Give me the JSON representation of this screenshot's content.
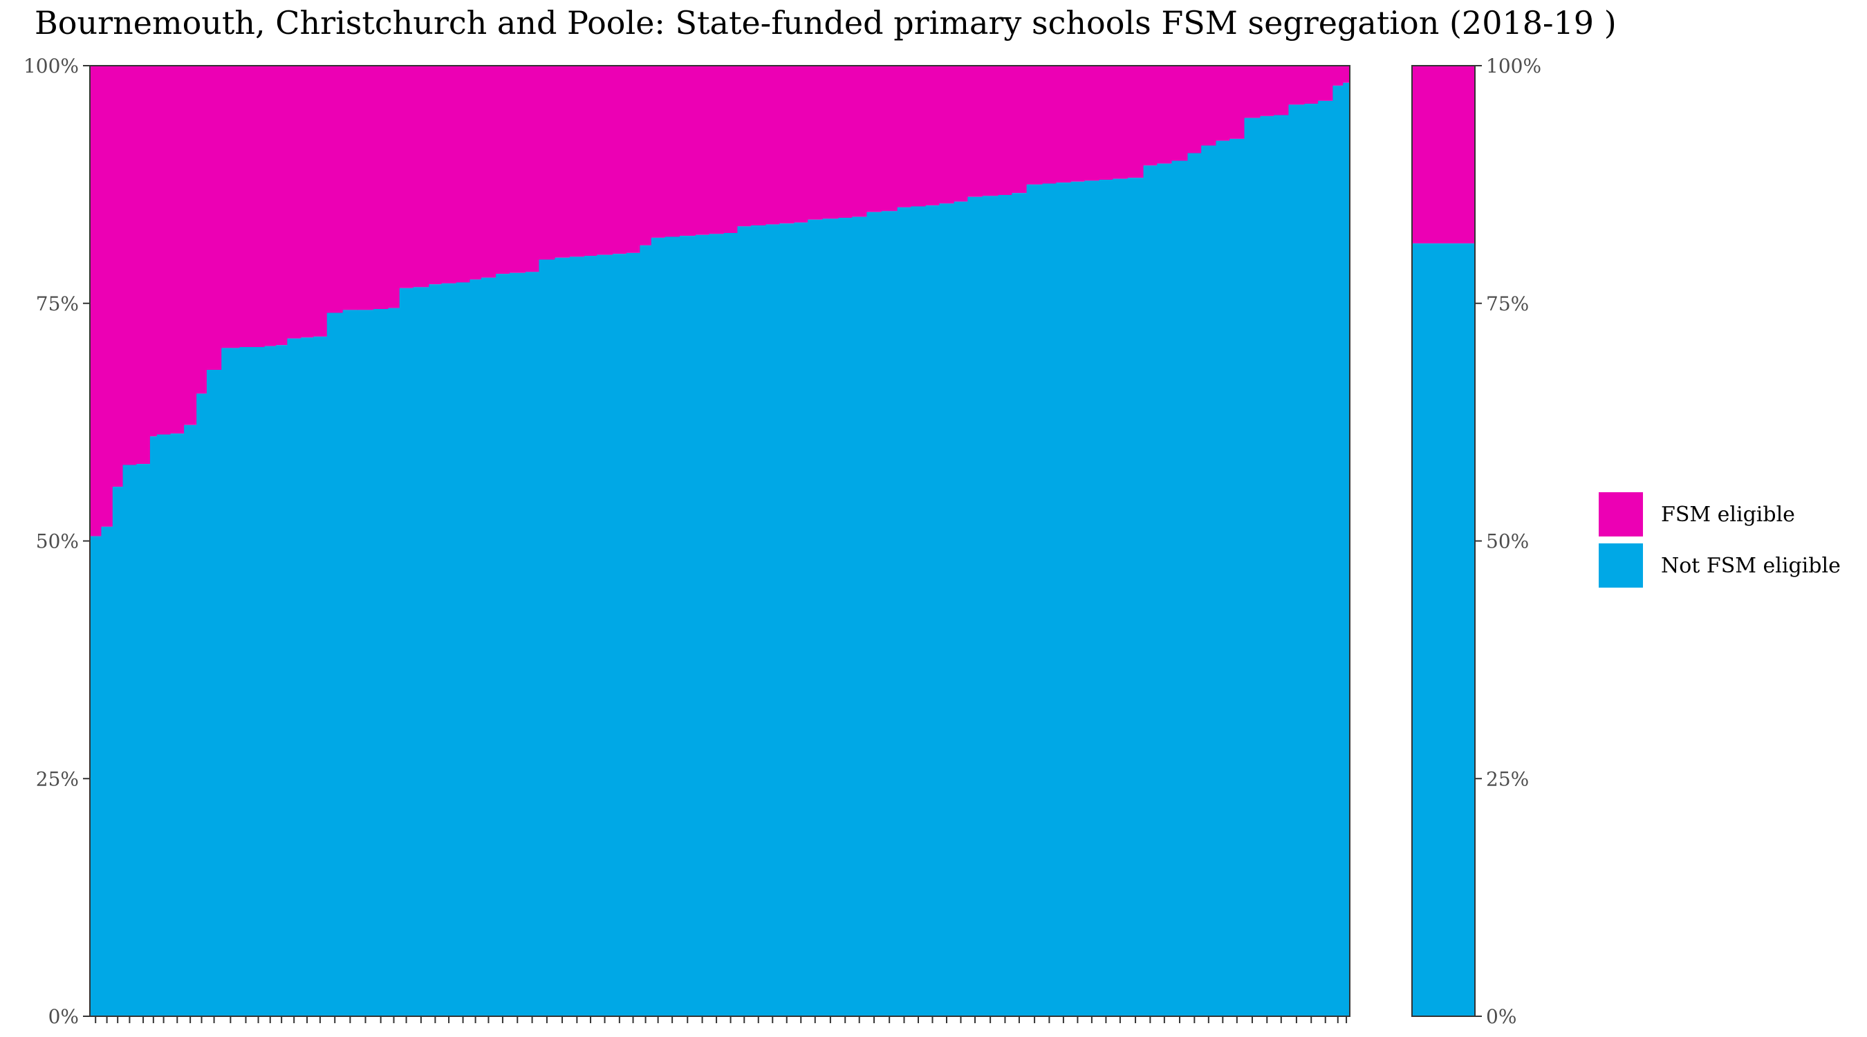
{
  "chart_data": {
    "type": "bar",
    "title": "Bournemouth, Christchurch and Poole: State-funded primary schools FSM segregation (2018-19 )",
    "xlabel": "",
    "ylabel": "",
    "ylim": [
      0,
      100
    ],
    "y_ticks": [
      "0%",
      "25%",
      "50%",
      "75%",
      "100%"
    ],
    "legend_position": "right",
    "colors": {
      "fsm": "#EC00B4",
      "not_fsm": "#00A8E6"
    },
    "series": [
      {
        "name": "FSM eligible",
        "color": "#EC00B4"
      },
      {
        "name": "Not FSM eligible",
        "color": "#00A8E6"
      }
    ],
    "schools": {
      "not_fsm_pct": [
        50.5,
        51.5,
        55.7,
        58.0,
        58.1,
        61.0,
        61.2,
        61.3,
        62.2,
        65.5,
        68.0,
        70.3,
        70.4,
        70.4,
        70.5,
        70.6,
        71.3,
        71.4,
        71.5,
        74.0,
        74.3,
        74.3,
        74.4,
        74.5,
        76.6,
        76.7,
        77.0,
        77.1,
        77.2,
        77.5,
        77.7,
        78.1,
        78.2,
        78.3,
        79.6,
        79.8,
        79.9,
        80.0,
        80.1,
        80.2,
        80.3,
        81.1,
        81.9,
        82.0,
        82.1,
        82.2,
        82.3,
        82.4,
        83.1,
        83.2,
        83.3,
        83.4,
        83.5,
        83.8,
        83.9,
        84.0,
        84.1,
        84.6,
        84.7,
        85.1,
        85.2,
        85.3,
        85.5,
        85.7,
        86.2,
        86.3,
        86.4,
        86.6,
        87.5,
        87.6,
        87.7,
        87.8,
        87.9,
        88.0,
        88.1,
        88.2,
        89.5,
        89.7,
        90.0,
        90.8,
        91.6,
        92.1,
        92.3,
        94.5,
        94.7,
        94.8,
        95.9,
        96.0,
        96.3,
        97.9,
        98.2
      ],
      "widths": [
        1.0,
        1.0,
        0.9,
        1.2,
        1.2,
        0.6,
        1.2,
        1.2,
        1.1,
        0.9,
        1.3,
        1.6,
        1.1,
        1.1,
        1.0,
        1.0,
        1.2,
        1.1,
        1.2,
        1.4,
        1.3,
        1.4,
        1.3,
        1.0,
        1.2,
        1.4,
        1.1,
        1.3,
        1.2,
        1.0,
        1.3,
        1.2,
        1.4,
        1.2,
        1.4,
        1.3,
        1.3,
        1.1,
        1.4,
        1.2,
        1.2,
        1.0,
        1.2,
        1.3,
        1.4,
        1.2,
        1.3,
        1.2,
        1.2,
        1.3,
        1.2,
        1.3,
        1.2,
        1.3,
        1.4,
        1.2,
        1.3,
        1.3,
        1.4,
        1.2,
        1.3,
        1.2,
        1.3,
        1.2,
        1.3,
        1.4,
        1.2,
        1.3,
        1.4,
        1.2,
        1.3,
        1.2,
        1.3,
        1.2,
        1.3,
        1.4,
        1.2,
        1.3,
        1.4,
        1.2,
        1.3,
        1.2,
        1.3,
        1.4,
        1.2,
        1.3,
        1.4,
        1.2,
        1.3,
        0.9,
        0.6
      ]
    },
    "overall": {
      "not_fsm_pct": 81.3
    }
  }
}
